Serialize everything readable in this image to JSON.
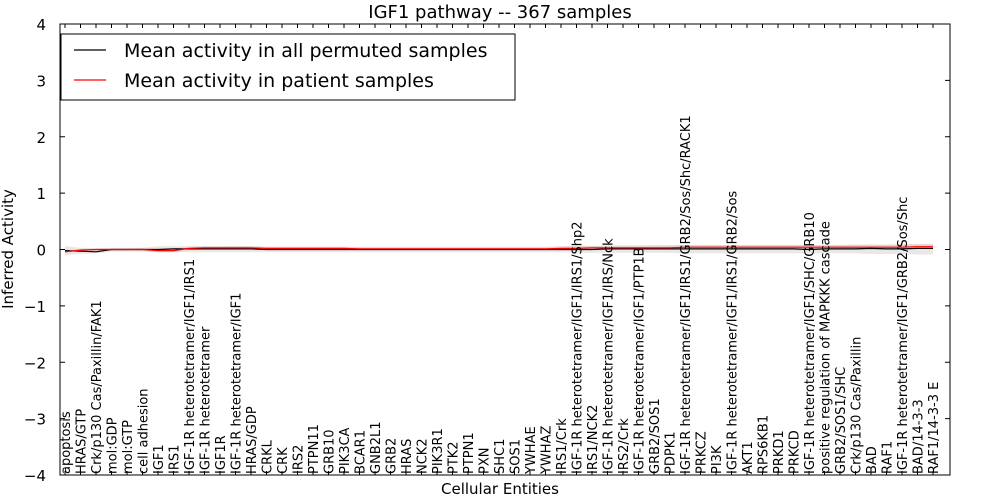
{
  "chart_data": {
    "type": "line",
    "title": "IGF1 pathway -- 367 samples",
    "xlabel": "Cellular Entities",
    "ylabel": "Inferred Activity",
    "ylim": [
      -4,
      4
    ],
    "yticks": [
      4,
      3,
      2,
      1,
      0,
      -1,
      -2,
      -3,
      -4
    ],
    "ytick_labels": [
      "4",
      "3",
      "2",
      "1",
      "0",
      "−1",
      "−2",
      "−3",
      "−4"
    ],
    "legend_position": "top-left",
    "grid": false,
    "categories": [
      "apoptosis",
      "HRAS/GTP",
      "Crk/p130 Cas/Paxillin/FAK1",
      "mol:GDP",
      "mol:GTP",
      "cell adhesion",
      "IGF1",
      "IRS1",
      "IGF-1R heterotetramer/IGF1/IRS1",
      "IGF-1R heterotetramer",
      "IGF1R",
      "IGF-1R heterotetramer/IGF1",
      "HRAS/GDP",
      "CRKL",
      "CRK",
      "IRS2",
      "PTPN11",
      "GRB10",
      "PIK3CA",
      "BCAR1",
      "GNB2L1",
      "GRB2",
      "HRAS",
      "NCK2",
      "PIK3R1",
      "PTK2",
      "PTPN1",
      "PXN",
      "SHC1",
      "SOS1",
      "YWHAE",
      "YWHAZ",
      "IRS1/Crk",
      "IGF-1R heterotetramer/IGF1/IRS1/Shp2",
      "IRS1/NCK2",
      "IGF-1R heterotetramer/IGF1/IRS/Nck",
      "IRS2/Crk",
      "IGF-1R heterotetramer/IGF1/PTP1B",
      "GRB2/SOS1",
      "PDPK1",
      "IGF-1R heterotetramer/IGF1/IRS1/GRB2/Sos/Shc/RACK1",
      "PRKCZ",
      "PI3K",
      "IGF-1R heterotetramer/IGF1/IRS1/GRB2/Sos",
      "AKT1",
      "RPS6KB1",
      "PRKD1",
      "PRKCD",
      "IGF-1R heterotetramer/IGF1/SHC/GRB10",
      "positive regulation of MAPKKK cascade",
      "GRB2/SOS1/SHC",
      "Crk/p130 Cas/Paxillin",
      "BAD",
      "RAF1",
      "IGF-1R heterotetramer/IGF1/GRB2/Sos/Shc",
      "BAD/14-3-3",
      "RAF1/14-3-3 E"
    ],
    "series": [
      {
        "name": "Mean activity in all permuted samples",
        "color": "#000000",
        "values": [
          -0.02,
          -0.03,
          -0.04,
          0.0,
          0.0,
          0.0,
          0.0,
          0.01,
          0.01,
          0.01,
          0.01,
          0.01,
          0.01,
          0.0,
          0.0,
          0.0,
          0.0,
          0.0,
          0.0,
          0.0,
          0.0,
          0.0,
          0.0,
          0.0,
          0.0,
          0.0,
          0.0,
          0.0,
          0.0,
          0.0,
          0.0,
          0.0,
          0.0,
          0.0,
          0.0,
          0.01,
          0.01,
          0.01,
          0.01,
          0.01,
          0.01,
          0.01,
          0.01,
          0.01,
          0.01,
          0.01,
          0.01,
          0.01,
          0.0,
          0.01,
          0.01,
          0.01,
          0.02,
          0.01,
          0.01,
          0.02,
          0.02
        ],
        "band_low": [
          -0.1,
          -0.08,
          -0.07,
          -0.04,
          -0.04,
          -0.04,
          -0.05,
          -0.05,
          -0.05,
          -0.05,
          -0.05,
          -0.05,
          -0.05,
          -0.05,
          -0.05,
          -0.05,
          -0.05,
          -0.05,
          -0.05,
          -0.05,
          -0.05,
          -0.05,
          -0.05,
          -0.05,
          -0.05,
          -0.05,
          -0.05,
          -0.05,
          -0.05,
          -0.05,
          -0.05,
          -0.05,
          -0.05,
          -0.06,
          -0.06,
          -0.06,
          -0.06,
          -0.06,
          -0.06,
          -0.06,
          -0.07,
          -0.07,
          -0.07,
          -0.07,
          -0.07,
          -0.07,
          -0.07,
          -0.07,
          -0.07,
          -0.07,
          -0.07,
          -0.07,
          -0.08,
          -0.08,
          -0.08,
          -0.09,
          -0.09
        ],
        "band_high": [
          0.06,
          0.03,
          0.02,
          0.03,
          0.03,
          0.03,
          0.06,
          0.06,
          0.06,
          0.06,
          0.06,
          0.06,
          0.06,
          0.05,
          0.05,
          0.05,
          0.05,
          0.05,
          0.05,
          0.05,
          0.05,
          0.05,
          0.05,
          0.05,
          0.05,
          0.05,
          0.05,
          0.05,
          0.05,
          0.05,
          0.05,
          0.05,
          0.06,
          0.07,
          0.07,
          0.07,
          0.07,
          0.07,
          0.08,
          0.08,
          0.08,
          0.08,
          0.08,
          0.08,
          0.08,
          0.08,
          0.08,
          0.08,
          0.08,
          0.08,
          0.08,
          0.09,
          0.09,
          0.09,
          0.1,
          0.1,
          0.1
        ]
      },
      {
        "name": "Mean activity in patient samples",
        "color": "#ff0000",
        "values": [
          -0.04,
          -0.01,
          0.0,
          0.0,
          0.0,
          0.0,
          -0.02,
          -0.02,
          0.02,
          0.03,
          0.03,
          0.03,
          0.03,
          0.02,
          0.02,
          0.02,
          0.02,
          0.02,
          0.02,
          0.01,
          0.01,
          0.01,
          0.01,
          0.01,
          0.01,
          0.01,
          0.01,
          0.01,
          0.01,
          0.01,
          0.01,
          0.01,
          0.02,
          0.02,
          0.03,
          0.03,
          0.03,
          0.03,
          0.03,
          0.03,
          0.04,
          0.04,
          0.04,
          0.04,
          0.04,
          0.04,
          0.04,
          0.04,
          0.04,
          0.04,
          0.04,
          0.04,
          0.04,
          0.04,
          0.04,
          0.05,
          0.05
        ],
        "band_low": [
          -0.06,
          -0.03,
          -0.02,
          -0.02,
          -0.02,
          -0.02,
          -0.05,
          -0.05,
          -0.01,
          0.0,
          0.0,
          0.0,
          0.0,
          0.0,
          0.0,
          0.0,
          0.0,
          0.0,
          0.0,
          -0.01,
          -0.01,
          -0.01,
          -0.01,
          -0.01,
          -0.01,
          -0.01,
          -0.01,
          -0.01,
          -0.01,
          -0.01,
          -0.01,
          -0.01,
          -0.01,
          -0.01,
          0.0,
          0.0,
          0.0,
          0.0,
          0.0,
          0.0,
          0.0,
          0.0,
          0.0,
          0.0,
          0.0,
          0.0,
          0.0,
          0.0,
          0.0,
          0.0,
          0.0,
          0.0,
          0.0,
          0.0,
          0.0,
          0.01,
          0.01
        ],
        "band_high": [
          -0.01,
          0.01,
          0.02,
          0.02,
          0.02,
          0.03,
          0.02,
          0.02,
          0.05,
          0.06,
          0.06,
          0.07,
          0.06,
          0.05,
          0.05,
          0.05,
          0.05,
          0.05,
          0.05,
          0.04,
          0.04,
          0.04,
          0.04,
          0.04,
          0.04,
          0.04,
          0.04,
          0.04,
          0.04,
          0.04,
          0.04,
          0.04,
          0.05,
          0.06,
          0.06,
          0.07,
          0.07,
          0.07,
          0.07,
          0.07,
          0.08,
          0.08,
          0.08,
          0.08,
          0.08,
          0.08,
          0.08,
          0.08,
          0.08,
          0.08,
          0.08,
          0.08,
          0.08,
          0.08,
          0.08,
          0.09,
          0.09
        ]
      }
    ]
  }
}
